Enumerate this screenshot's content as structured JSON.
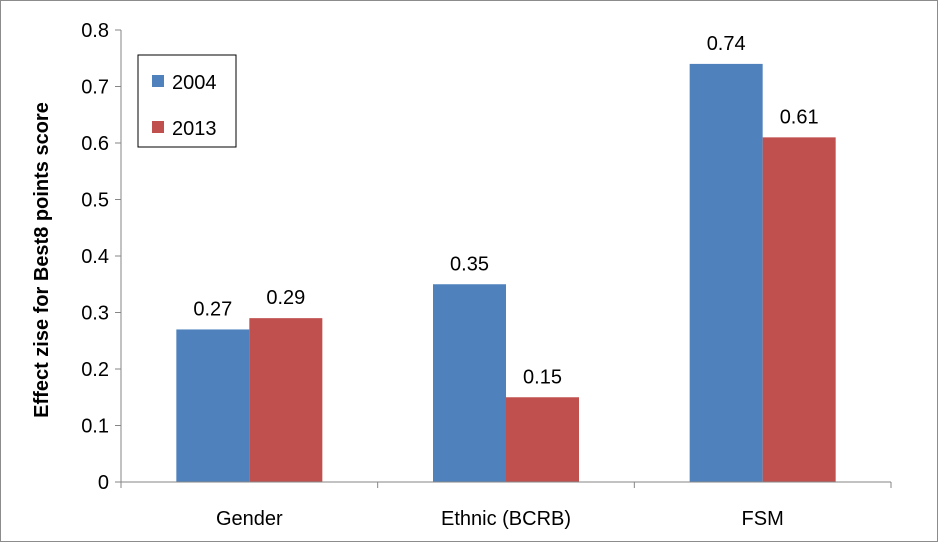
{
  "chart_data": {
    "type": "bar",
    "title": "",
    "xlabel": "",
    "ylabel": "Effect zise for Best8 points score",
    "categories": [
      "Gender",
      "Ethnic (BCRB)",
      "FSM"
    ],
    "series": [
      {
        "name": "2004",
        "color": "#4f81bd",
        "values": [
          0.27,
          0.35,
          0.74
        ]
      },
      {
        "name": "2013",
        "color": "#c0504d",
        "values": [
          0.29,
          0.15,
          0.61
        ]
      }
    ],
    "data_labels": [
      [
        "0.27",
        "0.35",
        "0.74"
      ],
      [
        "0.29",
        "0.15",
        "0.61"
      ]
    ],
    "ylim": [
      0,
      0.8
    ],
    "yticks": [
      0,
      0.1,
      0.2,
      0.3,
      0.4,
      0.5,
      0.6,
      0.7,
      0.8
    ],
    "ytick_labels": [
      "0",
      "0.1",
      "0.2",
      "0.3",
      "0.4",
      "0.5",
      "0.6",
      "0.7",
      "0.8"
    ],
    "grid": false,
    "legend": {
      "position": "top-left",
      "entries": [
        "2004",
        "2013"
      ]
    }
  }
}
